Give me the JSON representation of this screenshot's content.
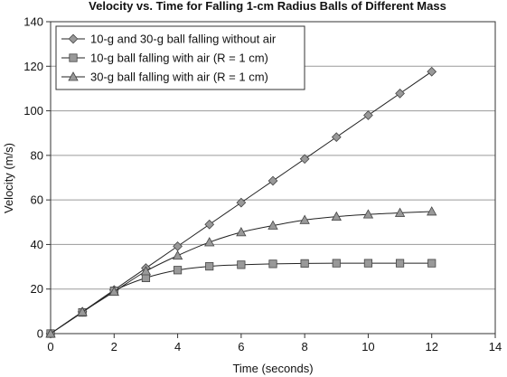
{
  "chart_data": {
    "type": "line",
    "title": "Velocity vs. Time for Falling 1-cm Radius Balls of Different Mass",
    "xlabel": "Time (seconds)",
    "ylabel": "Velocity (m/s)",
    "xlim": [
      0,
      14
    ],
    "ylim": [
      0,
      140
    ],
    "xticks": [
      0,
      2,
      4,
      6,
      8,
      10,
      12,
      14
    ],
    "yticks": [
      0,
      20,
      40,
      60,
      80,
      100,
      120,
      140
    ],
    "grid": "horizontal",
    "legend_position": "top-left",
    "x": [
      0,
      1,
      2,
      3,
      4,
      5,
      6,
      7,
      8,
      9,
      10,
      11,
      12
    ],
    "series": [
      {
        "name": "10-g and 30-g ball falling without air",
        "marker": "diamond",
        "color": "#8c8c8c",
        "values": [
          0,
          9.8,
          19.6,
          29.4,
          39.2,
          49,
          58.8,
          68.6,
          78.4,
          88.2,
          98,
          107.8,
          117.6
        ]
      },
      {
        "name": "10-g ball falling with air (R = 1 cm)",
        "marker": "square",
        "color": "#8c8c8c",
        "values": [
          0,
          9.5,
          19.2,
          25,
          28.5,
          30.2,
          30.9,
          31.3,
          31.5,
          31.6,
          31.6,
          31.6,
          31.6
        ]
      },
      {
        "name": "30-g ball falling with air (R = 1 cm)",
        "marker": "triangle",
        "color": "#8c8c8c",
        "values": [
          0,
          9.7,
          18.8,
          28,
          35,
          41,
          45.5,
          48.5,
          51,
          52.5,
          53.5,
          54.2,
          54.8
        ]
      }
    ]
  }
}
